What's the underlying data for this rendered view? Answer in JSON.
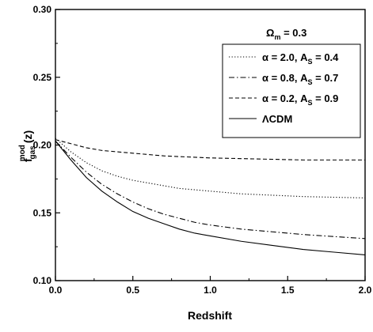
{
  "chart_data": {
    "type": "line",
    "title": "",
    "xlabel": "Redshift",
    "ylabel": {
      "base": "f",
      "superscript": "mod",
      "subscript": "gas",
      "suffix": "(z)"
    },
    "xlim": [
      0.0,
      2.0
    ],
    "ylim": [
      0.1,
      0.3
    ],
    "xticks": [
      {
        "value": 0.0,
        "label": "0.0"
      },
      {
        "value": 0.5,
        "label": "0.5"
      },
      {
        "value": 1.0,
        "label": "1.0"
      },
      {
        "value": 1.5,
        "label": "1.5"
      },
      {
        "value": 2.0,
        "label": "2.0"
      }
    ],
    "yticks": [
      {
        "value": 0.1,
        "label": "0.10"
      },
      {
        "value": 0.15,
        "label": "0.15"
      },
      {
        "value": 0.2,
        "label": "0.20"
      },
      {
        "value": 0.25,
        "label": "0.25"
      },
      {
        "value": 0.3,
        "label": "0.30"
      }
    ],
    "grid": false,
    "legend_placement": "top-right",
    "legend_header": {
      "symbol": "Ω",
      "subscript": "m",
      "rest": " = 0.3"
    },
    "series": [
      {
        "name": "α = 2.0, A_S = 0.4",
        "label_parts": {
          "main": "α = 2.0, A",
          "sub": "S",
          "tail": " = 0.4"
        },
        "style": "dotted",
        "x": [
          0.0,
          0.1,
          0.2,
          0.3,
          0.4,
          0.5,
          0.6,
          0.7,
          0.8,
          0.9,
          1.0,
          1.2,
          1.4,
          1.6,
          1.8,
          2.0
        ],
        "y": [
          0.205,
          0.195,
          0.187,
          0.181,
          0.177,
          0.174,
          0.172,
          0.17,
          0.168,
          0.167,
          0.166,
          0.164,
          0.163,
          0.162,
          0.1615,
          0.161
        ]
      },
      {
        "name": "α = 0.8, A_S = 0.7",
        "label_parts": {
          "main": "α = 0.8, A",
          "sub": "S",
          "tail": " = 0.7"
        },
        "style": "dashdot",
        "x": [
          0.0,
          0.1,
          0.2,
          0.3,
          0.4,
          0.5,
          0.6,
          0.7,
          0.8,
          0.9,
          1.0,
          1.2,
          1.4,
          1.6,
          1.8,
          2.0
        ],
        "y": [
          0.203,
          0.191,
          0.18,
          0.171,
          0.164,
          0.158,
          0.153,
          0.149,
          0.146,
          0.143,
          0.141,
          0.138,
          0.136,
          0.134,
          0.1325,
          0.131
        ]
      },
      {
        "name": "α = 0.2, A_S = 0.9",
        "label_parts": {
          "main": "α = 0.2, A",
          "sub": "S",
          "tail": " = 0.9"
        },
        "style": "dashed",
        "x": [
          0.0,
          0.1,
          0.2,
          0.3,
          0.4,
          0.5,
          0.6,
          0.7,
          0.8,
          0.9,
          1.0,
          1.2,
          1.4,
          1.6,
          1.8,
          2.0
        ],
        "y": [
          0.204,
          0.201,
          0.198,
          0.196,
          0.195,
          0.194,
          0.193,
          0.192,
          0.1915,
          0.191,
          0.1905,
          0.19,
          0.1895,
          0.189,
          0.189,
          0.189
        ]
      },
      {
        "name": "ΛCDM",
        "label_parts": {
          "main": "ΛCDM",
          "sub": "",
          "tail": ""
        },
        "style": "solid",
        "x": [
          0.0,
          0.1,
          0.2,
          0.3,
          0.4,
          0.5,
          0.6,
          0.7,
          0.8,
          0.9,
          1.0,
          1.2,
          1.4,
          1.6,
          1.8,
          2.0
        ],
        "y": [
          0.203,
          0.189,
          0.176,
          0.166,
          0.158,
          0.151,
          0.146,
          0.142,
          0.138,
          0.135,
          0.133,
          0.129,
          0.126,
          0.123,
          0.121,
          0.119
        ]
      }
    ]
  }
}
